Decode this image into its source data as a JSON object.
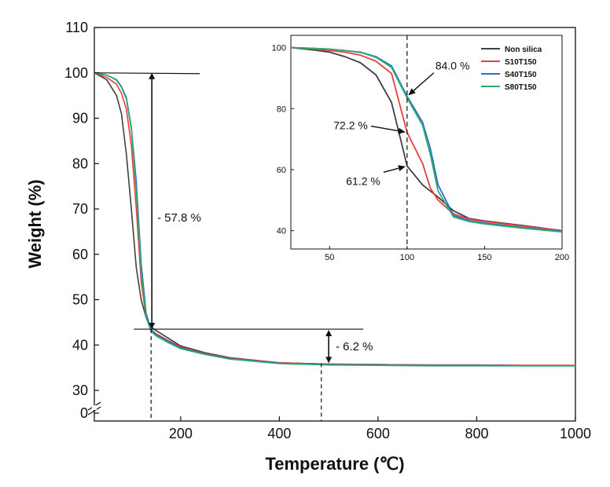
{
  "chart_data": [
    {
      "type": "line",
      "xlabel": "Temperature (℃)",
      "ylabel": "Weight (%)",
      "xlim": [
        25,
        1000
      ],
      "ylim": [
        30,
        110
      ],
      "broken_y_axis": true,
      "x_ticks": [
        200,
        400,
        600,
        800,
        1000
      ],
      "y_ticks": [
        30,
        40,
        50,
        60,
        70,
        80,
        90,
        100,
        110
      ],
      "y_ticks_below_break": [
        0
      ],
      "series": [
        {
          "name": "Non silica",
          "color": "#404040",
          "x": [
            25,
            50,
            70,
            80,
            90,
            100,
            110,
            120,
            130,
            140,
            150,
            175,
            200,
            250,
            300,
            400,
            500,
            600,
            700,
            800,
            900,
            1000
          ],
          "y": [
            100,
            98.5,
            95,
            91,
            82,
            70,
            57,
            50,
            46,
            44,
            43.2,
            41.5,
            39.8,
            38.3,
            37.2,
            36.1,
            35.8,
            35.7,
            35.6,
            35.6,
            35.5,
            35.5
          ]
        },
        {
          "name": "S10T150",
          "color": "#e8403a",
          "x": [
            25,
            50,
            70,
            80,
            90,
            100,
            110,
            120,
            130,
            140,
            150,
            175,
            200,
            250,
            300,
            400,
            500,
            600,
            700,
            800,
            900,
            1000
          ],
          "y": [
            100,
            99,
            97.5,
            95.5,
            92,
            84,
            70,
            54,
            46,
            43.4,
            42.5,
            41,
            39.6,
            38.1,
            37.1,
            36.1,
            35.8,
            35.7,
            35.6,
            35.6,
            35.5,
            35.5
          ]
        },
        {
          "name": "S40T150",
          "color": "#2f6cc4",
          "x": [
            25,
            50,
            70,
            80,
            90,
            100,
            110,
            120,
            130,
            140,
            150,
            175,
            200,
            250,
            300,
            400,
            500,
            600,
            700,
            800,
            900,
            1000
          ],
          "y": [
            100,
            99.5,
            98.5,
            97,
            94.5,
            88,
            76,
            58,
            47,
            43.4,
            42.3,
            40.8,
            39.4,
            38,
            37,
            36,
            35.7,
            35.6,
            35.5,
            35.5,
            35.4,
            35.4
          ]
        },
        {
          "name": "S80T150",
          "color": "#2eaa6e",
          "x": [
            25,
            50,
            70,
            80,
            90,
            100,
            110,
            120,
            130,
            140,
            150,
            175,
            200,
            250,
            300,
            400,
            500,
            600,
            700,
            800,
            900,
            1000
          ],
          "y": [
            100,
            99.5,
            98.4,
            96.8,
            94.2,
            87.5,
            74,
            56,
            46,
            43,
            42,
            40.5,
            39.2,
            37.9,
            36.9,
            35.9,
            35.6,
            35.5,
            35.4,
            35.4,
            35.4,
            35.4
          ]
        }
      ],
      "reference_lines": {
        "upper_y": 100,
        "lower_y": 43.5,
        "x_onset": 140,
        "x_final": 485,
        "final_y": 36
      },
      "annotations": [
        {
          "text": "- 57.8 %"
        },
        {
          "text": "- 6.2 %"
        }
      ]
    },
    {
      "type": "line",
      "inset": true,
      "xlim": [
        25,
        200
      ],
      "ylim": [
        34,
        104
      ],
      "x_ticks": [
        50,
        100,
        150,
        200
      ],
      "y_ticks": [
        40,
        60,
        80,
        100
      ],
      "legend_position": "top-right",
      "vertical_line_x": 100,
      "series": [
        {
          "name": "Non silica",
          "color": "#404040",
          "x": [
            25,
            40,
            50,
            60,
            70,
            80,
            90,
            100,
            110,
            120,
            130,
            140,
            150,
            175,
            200
          ],
          "y": [
            100,
            99.2,
            98.5,
            97,
            95,
            91,
            82,
            61.2,
            55,
            51,
            46.5,
            44,
            43.2,
            41.7,
            40
          ]
        },
        {
          "name": "S10T150",
          "color": "#e8403a",
          "x": [
            25,
            40,
            50,
            60,
            70,
            80,
            90,
            100,
            110,
            115,
            120,
            130,
            140,
            150,
            175,
            200
          ],
          "y": [
            100,
            99.5,
            99,
            98.5,
            97.5,
            95.5,
            91.5,
            72.2,
            62,
            54,
            50,
            45.5,
            43.8,
            43,
            41.5,
            40
          ]
        },
        {
          "name": "S40T150",
          "color": "#2f6cc4",
          "x": [
            25,
            40,
            50,
            60,
            70,
            80,
            90,
            100,
            110,
            115,
            120,
            130,
            140,
            150,
            175,
            200
          ],
          "y": [
            100,
            99.7,
            99.5,
            99,
            98.5,
            97,
            94,
            84,
            75.5,
            67,
            55,
            45,
            43.3,
            42.5,
            41,
            39.8
          ]
        },
        {
          "name": "S80T150",
          "color": "#2eaa6e",
          "x": [
            25,
            40,
            50,
            60,
            70,
            80,
            90,
            100,
            110,
            115,
            120,
            130,
            140,
            150,
            175,
            200
          ],
          "y": [
            100,
            99.7,
            99.5,
            99,
            98.4,
            96.8,
            93.5,
            83.5,
            74.5,
            65,
            53,
            44.5,
            43,
            42.2,
            40.8,
            39.6
          ]
        }
      ],
      "annotations": [
        {
          "text": "84.0 %",
          "x": 100,
          "y": 84
        },
        {
          "text": "72.2 %",
          "x": 100,
          "y": 72.2
        },
        {
          "text": "61.2 %",
          "x": 100,
          "y": 61.2
        }
      ]
    }
  ]
}
